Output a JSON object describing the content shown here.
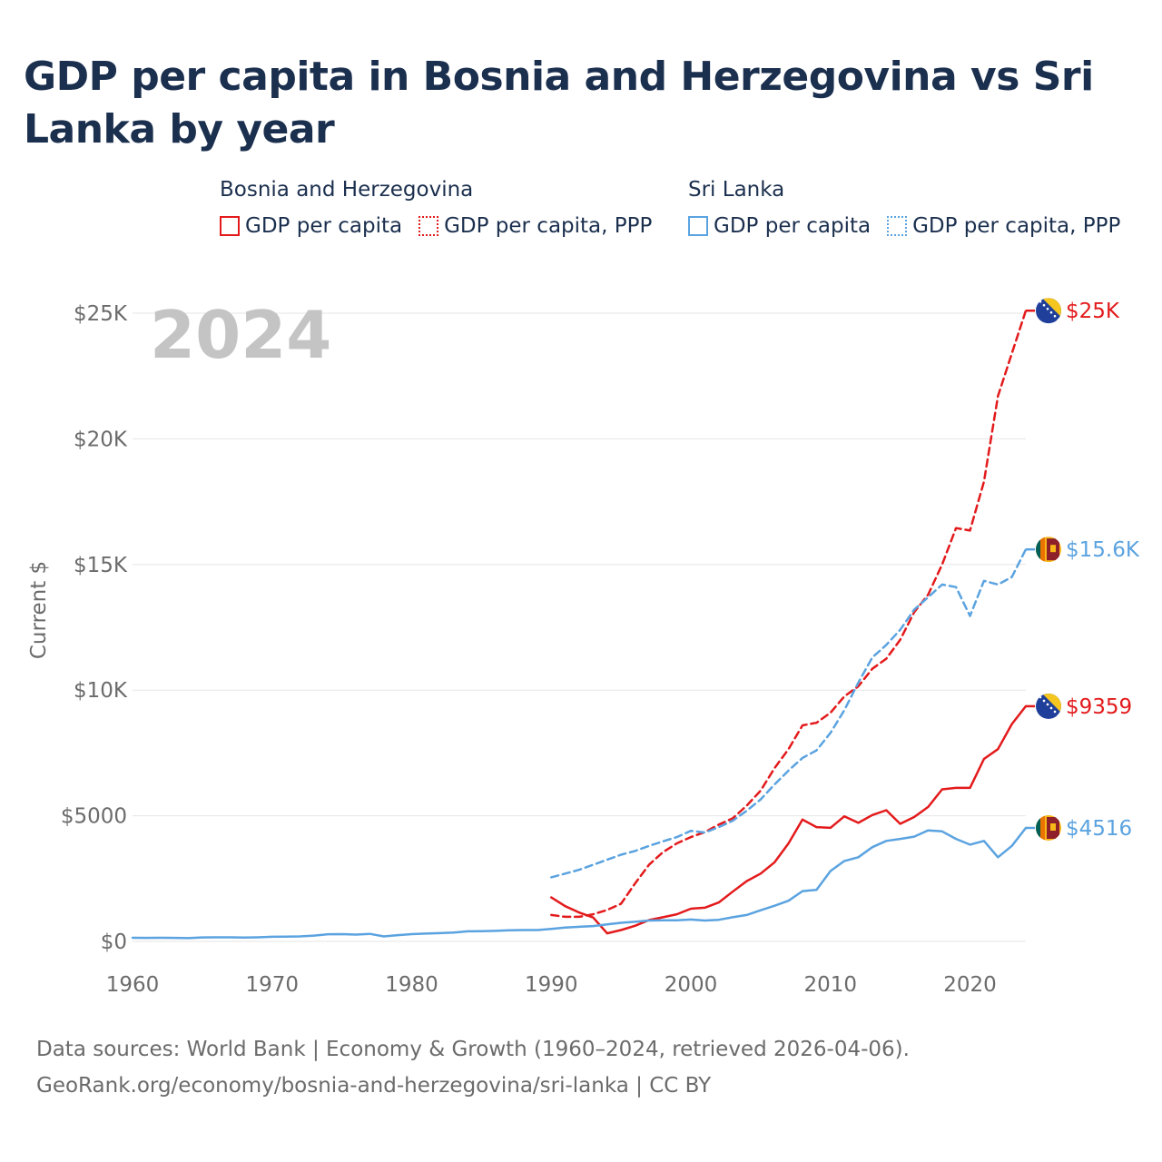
{
  "title": "GDP per capita in Bosnia and Herzegovina vs Sri Lanka by year",
  "legend": {
    "groups": [
      {
        "name": "Bosnia and Herzegovina",
        "color": "#e31a1c",
        "items": [
          {
            "label": "GDP per capita",
            "style": "solid"
          },
          {
            "label": "GDP per capita, PPP",
            "style": "dotted"
          }
        ]
      },
      {
        "name": "Sri Lanka",
        "color": "#5ba3e0",
        "items": [
          {
            "label": "GDP per capita",
            "style": "solid"
          },
          {
            "label": "GDP per capita, PPP",
            "style": "dotted"
          }
        ]
      }
    ]
  },
  "footer": {
    "line1": "Data sources: World Bank | Economy & Growth (1960–2024, retrieved 2026-04-06).",
    "line2": "GeoRank.org/economy/bosnia-and-herzegovina/sri-lanka | CC BY"
  },
  "chart_data": {
    "type": "line",
    "title": "GDP per capita in Bosnia and Herzegovina vs Sri Lanka by year",
    "year_label": "2024",
    "xlabel": "",
    "ylabel": "Current $",
    "xlim": [
      1960,
      2024
    ],
    "ylim": [
      0,
      25000
    ],
    "x_ticks": [
      1960,
      1970,
      1980,
      1990,
      2000,
      2010,
      2020
    ],
    "x_tick_labels": [
      "1960",
      "1970",
      "1980",
      "1990",
      "2000",
      "2010",
      "2020"
    ],
    "y_ticks": [
      0,
      5000,
      10000,
      15000,
      20000,
      25000
    ],
    "y_tick_labels": [
      "$0",
      "$5000",
      "$10K",
      "$15K",
      "$20K",
      "$25K"
    ],
    "grid": true,
    "series": [
      {
        "name": "Bosnia and Herzegovina GDP per capita",
        "country": "Bosnia and Herzegovina",
        "flag": "bosnia",
        "color": "#e31a1c",
        "dash": "solid",
        "end_label": "$9359",
        "points": [
          [
            1990,
            1750
          ],
          [
            1991,
            1400
          ],
          [
            1992,
            1150
          ],
          [
            1993,
            950
          ],
          [
            1994,
            320
          ],
          [
            1995,
            450
          ],
          [
            1996,
            620
          ],
          [
            1997,
            850
          ],
          [
            1998,
            960
          ],
          [
            1999,
            1080
          ],
          [
            2000,
            1300
          ],
          [
            2001,
            1340
          ],
          [
            2002,
            1550
          ],
          [
            2003,
            1980
          ],
          [
            2004,
            2400
          ],
          [
            2005,
            2700
          ],
          [
            2006,
            3150
          ],
          [
            2007,
            3900
          ],
          [
            2008,
            4850
          ],
          [
            2009,
            4550
          ],
          [
            2010,
            4520
          ],
          [
            2011,
            4980
          ],
          [
            2012,
            4720
          ],
          [
            2013,
            5030
          ],
          [
            2014,
            5220
          ],
          [
            2015,
            4680
          ],
          [
            2016,
            4950
          ],
          [
            2017,
            5350
          ],
          [
            2018,
            6050
          ],
          [
            2019,
            6110
          ],
          [
            2020,
            6110
          ],
          [
            2021,
            7260
          ],
          [
            2022,
            7650
          ],
          [
            2023,
            8650
          ],
          [
            2024,
            9359
          ]
        ]
      },
      {
        "name": "Bosnia and Herzegovina GDP per capita, PPP",
        "country": "Bosnia and Herzegovina",
        "flag": "bosnia",
        "color": "#e31a1c",
        "dash": "dashed",
        "end_label": "$25K",
        "points": [
          [
            1990,
            1050
          ],
          [
            1991,
            980
          ],
          [
            1992,
            980
          ],
          [
            1993,
            1080
          ],
          [
            1994,
            1250
          ],
          [
            1995,
            1500
          ],
          [
            1996,
            2300
          ],
          [
            1997,
            3050
          ],
          [
            1998,
            3550
          ],
          [
            1999,
            3900
          ],
          [
            2000,
            4150
          ],
          [
            2001,
            4350
          ],
          [
            2002,
            4650
          ],
          [
            2003,
            4900
          ],
          [
            2004,
            5400
          ],
          [
            2005,
            6000
          ],
          [
            2006,
            6900
          ],
          [
            2007,
            7650
          ],
          [
            2008,
            8600
          ],
          [
            2009,
            8700
          ],
          [
            2010,
            9100
          ],
          [
            2011,
            9750
          ],
          [
            2012,
            10150
          ],
          [
            2013,
            10850
          ],
          [
            2014,
            11250
          ],
          [
            2015,
            12000
          ],
          [
            2016,
            13100
          ],
          [
            2017,
            13800
          ],
          [
            2018,
            15000
          ],
          [
            2019,
            16450
          ],
          [
            2020,
            16350
          ],
          [
            2021,
            18300
          ],
          [
            2022,
            21700
          ],
          [
            2023,
            23400
          ],
          [
            2024,
            25100
          ]
        ]
      },
      {
        "name": "Sri Lanka GDP per capita",
        "country": "Sri Lanka",
        "flag": "srilanka",
        "color": "#5ba3e0",
        "dash": "solid",
        "end_label": "$4516",
        "points": [
          [
            1960,
            143
          ],
          [
            1961,
            141
          ],
          [
            1962,
            145
          ],
          [
            1963,
            140
          ],
          [
            1964,
            130
          ],
          [
            1965,
            160
          ],
          [
            1966,
            163
          ],
          [
            1967,
            164
          ],
          [
            1968,
            150
          ],
          [
            1969,
            161
          ],
          [
            1970,
            183
          ],
          [
            1971,
            190
          ],
          [
            1972,
            197
          ],
          [
            1973,
            230
          ],
          [
            1974,
            285
          ],
          [
            1975,
            290
          ],
          [
            1976,
            270
          ],
          [
            1977,
            300
          ],
          [
            1978,
            200
          ],
          [
            1979,
            250
          ],
          [
            1980,
            290
          ],
          [
            1981,
            310
          ],
          [
            1982,
            330
          ],
          [
            1983,
            350
          ],
          [
            1984,
            400
          ],
          [
            1985,
            405
          ],
          [
            1986,
            420
          ],
          [
            1987,
            440
          ],
          [
            1988,
            450
          ],
          [
            1989,
            450
          ],
          [
            1990,
            500
          ],
          [
            1991,
            550
          ],
          [
            1992,
            580
          ],
          [
            1993,
            610
          ],
          [
            1994,
            680
          ],
          [
            1995,
            740
          ],
          [
            1996,
            780
          ],
          [
            1997,
            830
          ],
          [
            1998,
            840
          ],
          [
            1999,
            840
          ],
          [
            2000,
            870
          ],
          [
            2001,
            830
          ],
          [
            2002,
            860
          ],
          [
            2003,
            960
          ],
          [
            2004,
            1050
          ],
          [
            2005,
            1240
          ],
          [
            2006,
            1420
          ],
          [
            2007,
            1620
          ],
          [
            2008,
            2000
          ],
          [
            2009,
            2050
          ],
          [
            2010,
            2800
          ],
          [
            2011,
            3200
          ],
          [
            2012,
            3350
          ],
          [
            2013,
            3750
          ],
          [
            2014,
            4000
          ],
          [
            2015,
            4080
          ],
          [
            2016,
            4170
          ],
          [
            2017,
            4420
          ],
          [
            2018,
            4380
          ],
          [
            2019,
            4080
          ],
          [
            2020,
            3850
          ],
          [
            2021,
            4000
          ],
          [
            2022,
            3350
          ],
          [
            2023,
            3800
          ],
          [
            2024,
            4516
          ]
        ]
      },
      {
        "name": "Sri Lanka GDP per capita, PPP",
        "country": "Sri Lanka",
        "flag": "srilanka",
        "color": "#5ba3e0",
        "dash": "dashed",
        "end_label": "$15.6K",
        "points": [
          [
            1990,
            2550
          ],
          [
            1991,
            2700
          ],
          [
            1992,
            2850
          ],
          [
            1993,
            3050
          ],
          [
            1994,
            3250
          ],
          [
            1995,
            3450
          ],
          [
            1996,
            3600
          ],
          [
            1997,
            3800
          ],
          [
            1998,
            3980
          ],
          [
            1999,
            4150
          ],
          [
            2000,
            4400
          ],
          [
            2001,
            4330
          ],
          [
            2002,
            4550
          ],
          [
            2003,
            4800
          ],
          [
            2004,
            5200
          ],
          [
            2005,
            5650
          ],
          [
            2006,
            6250
          ],
          [
            2007,
            6800
          ],
          [
            2008,
            7300
          ],
          [
            2009,
            7600
          ],
          [
            2010,
            8300
          ],
          [
            2011,
            9200
          ],
          [
            2012,
            10300
          ],
          [
            2013,
            11300
          ],
          [
            2014,
            11800
          ],
          [
            2015,
            12400
          ],
          [
            2016,
            13200
          ],
          [
            2017,
            13700
          ],
          [
            2018,
            14200
          ],
          [
            2019,
            14100
          ],
          [
            2020,
            12950
          ],
          [
            2021,
            14350
          ],
          [
            2022,
            14200
          ],
          [
            2023,
            14500
          ],
          [
            2024,
            15600
          ]
        ]
      }
    ]
  }
}
